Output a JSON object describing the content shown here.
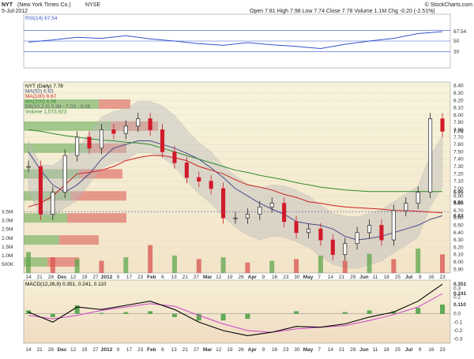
{
  "header": {
    "symbol": "NYT",
    "company": "(New York Times Co.)",
    "exchange": "NYSE",
    "date": "5-Jul-2012",
    "ohlc_text": "Open 7.81  High 7.98  Low 7.74  Close 7.78  Volume 1.1M  Chg -0.20 (-2.51%)",
    "source": "© StockCharts.com"
  },
  "colors": {
    "up": "#222222",
    "down": "#d11a2a",
    "ma50": "#4b4b8c",
    "ma100": "#cc2222",
    "ma200": "#2f8a2f",
    "bband_fill": "#bdbdbd",
    "vbp_green": "#5fa64c",
    "vbp_red": "#d9534f",
    "rsi_line": "#3355cc",
    "macd_line": "#000000",
    "signal_line": "#cc44cc",
    "hist": "#3a9a3a",
    "panel_bg_top": "#f6f3d8",
    "panel_bg_bottom": "#f2dfc4"
  },
  "chart_data": [
    {
      "type": "line",
      "title": "RSI(14) 67.54",
      "ylim": [
        0,
        100
      ],
      "reference_lines": [
        30,
        50,
        70
      ],
      "right_labels": [
        "67.54",
        "50",
        "30"
      ],
      "x": [
        "2011-11-14",
        "2011-11-28",
        "2011-12-12",
        "2011-12-27",
        "2012-01-09",
        "2012-01-23",
        "2012-02-06",
        "2012-02-21",
        "2012-03-05",
        "2012-03-19",
        "2012-04-02",
        "2012-04-16",
        "2012-04-30",
        "2012-05-14",
        "2012-05-29",
        "2012-06-11",
        "2012-06-25",
        "2012-07-05"
      ],
      "series": [
        {
          "name": "RSI(14)",
          "values": [
            48,
            52,
            57,
            55,
            60,
            54,
            50,
            45,
            42,
            47,
            43,
            40,
            36,
            44,
            50,
            55,
            64,
            67.54
          ]
        }
      ]
    },
    {
      "type": "line",
      "subtype": "candlestick",
      "title": "NYT (Daily) 7.78",
      "ylim": [
        5.85,
        8.45
      ],
      "ytick_labels": [
        "8.40",
        "8.30",
        "8.20",
        "8.10",
        "8.00",
        "7.90",
        "7.80",
        "7.70",
        "7.60",
        "7.50",
        "7.40",
        "7.30",
        "7.20",
        "7.10",
        "7.00",
        "6.90",
        "6.80",
        "6.70",
        "6.60",
        "6.50",
        "6.40",
        "6.30",
        "6.20",
        "6.10",
        "6.00",
        "5.90"
      ],
      "right_value_labels": [
        "7.78",
        "6.95",
        "6.81",
        "6.63"
      ],
      "legend": [
        "NYT (Daily) 7.78",
        "MA(50) 6.63",
        "MA(100) 6.67",
        "MA(200) 6.96",
        "BB(20,2.0) 5.99 - 7.03 - 8.06",
        "Volume 1,073,923"
      ],
      "volume_axis_labels": [
        "3.5M",
        "3.0M",
        "2.5M",
        "2.0M",
        "1.5M",
        "1.0M",
        "500K"
      ],
      "x_tick_labels": [
        "14",
        "21",
        "28",
        "Dec",
        "12",
        "19",
        "27",
        "2012",
        "9",
        "17",
        "23",
        "Feb",
        "6",
        "13",
        "21",
        "27",
        "Mar",
        "12",
        "19",
        "26",
        "Apr",
        "9",
        "16",
        "23",
        "30",
        "May",
        "7",
        "14",
        "21",
        "29",
        "Jun",
        "11",
        "18",
        "25",
        "Jul",
        "9",
        "16",
        "23"
      ],
      "x": [
        "2011-11-14",
        "2011-11-21",
        "2011-11-28",
        "2011-12-05",
        "2011-12-12",
        "2011-12-19",
        "2011-12-27",
        "2012-01-03",
        "2012-01-09",
        "2012-01-17",
        "2012-01-23",
        "2012-01-30",
        "2012-02-06",
        "2012-02-13",
        "2012-02-21",
        "2012-02-27",
        "2012-03-05",
        "2012-03-12",
        "2012-03-19",
        "2012-03-26",
        "2012-04-02",
        "2012-04-09",
        "2012-04-16",
        "2012-04-23",
        "2012-04-30",
        "2012-05-07",
        "2012-05-14",
        "2012-05-21",
        "2012-05-29",
        "2012-06-04",
        "2012-06-11",
        "2012-06-18",
        "2012-06-25",
        "2012-07-02",
        "2012-07-05"
      ],
      "close": [
        7.3,
        6.65,
        6.95,
        7.45,
        7.7,
        7.55,
        7.8,
        7.75,
        7.85,
        7.95,
        7.8,
        7.5,
        7.35,
        7.15,
        7.1,
        7.0,
        6.6,
        6.6,
        6.65,
        6.75,
        6.8,
        6.55,
        6.4,
        6.45,
        6.3,
        6.1,
        6.25,
        6.4,
        6.5,
        6.3,
        6.7,
        6.8,
        6.95,
        7.95,
        7.78
      ],
      "series": [
        {
          "name": "MA(50)",
          "values": [
            7.5,
            7.25,
            7.05,
            6.95,
            7.05,
            7.2,
            7.4,
            7.55,
            7.6,
            7.65,
            7.65,
            7.6,
            7.55,
            7.48,
            7.4,
            7.28,
            7.15,
            7.0,
            6.9,
            6.8,
            6.72,
            6.65,
            6.55,
            6.52,
            6.5,
            6.45,
            6.35,
            6.3,
            6.32,
            6.35,
            6.4,
            6.45,
            6.5,
            6.58,
            6.63
          ]
        },
        {
          "name": "MA(100)",
          "values": [
            6.75,
            6.8,
            6.9,
            7.05,
            7.2,
            7.22,
            7.25,
            7.3,
            7.38,
            7.42,
            7.45,
            7.45,
            7.42,
            7.38,
            7.3,
            7.25,
            7.2,
            7.12,
            7.05,
            7.02,
            6.98,
            6.92,
            6.88,
            6.82,
            6.8,
            6.77,
            6.75,
            6.74,
            6.73,
            6.72,
            6.7,
            6.7,
            6.69,
            6.68,
            6.67
          ]
        },
        {
          "name": "MA(200)",
          "values": [
            7.8,
            7.78,
            7.75,
            7.72,
            7.7,
            7.68,
            7.66,
            7.65,
            7.63,
            7.62,
            7.6,
            7.55,
            7.5,
            7.45,
            7.4,
            7.35,
            7.3,
            7.25,
            7.22,
            7.18,
            7.15,
            7.12,
            7.08,
            7.05,
            7.02,
            7.0,
            6.98,
            6.97,
            6.96,
            6.96,
            6.96,
            6.96,
            6.96,
            6.96,
            6.96
          ]
        }
      ]
    },
    {
      "type": "bar",
      "title": "Volume",
      "categories": [
        "2011-11-14",
        "2011-11-28",
        "2011-12-12",
        "2011-12-27",
        "2012-01-09",
        "2012-01-23",
        "2012-02-06",
        "2012-02-21",
        "2012-03-05",
        "2012-03-19",
        "2012-04-02",
        "2012-04-16",
        "2012-04-30",
        "2012-05-14",
        "2012-05-29",
        "2012-06-11",
        "2012-06-25",
        "2012-07-05"
      ],
      "values": [
        1.2,
        0.9,
        0.8,
        0.7,
        0.9,
        1.6,
        1.0,
        0.8,
        0.9,
        0.6,
        0.7,
        0.8,
        1.0,
        0.7,
        1.1,
        0.8,
        1.4,
        1.07
      ],
      "ylabel": "",
      "ylim": [
        0,
        3.8
      ]
    },
    {
      "type": "line",
      "title": "MACD(12,26,9) 0.351, 0.241, 0.110",
      "legend": [
        "MACD(12,26,9) 0.351",
        "0.241",
        "0.110"
      ],
      "right_labels": [
        "0.351",
        "0.3",
        "0.241",
        "0.2",
        "0.110",
        "0.0",
        "-0.1",
        "-0.2",
        "-0.3"
      ],
      "x_tick_labels": [
        "14",
        "21",
        "28",
        "Dec",
        "12",
        "19",
        "27",
        "2012",
        "9",
        "17",
        "23",
        "Feb",
        "6",
        "13",
        "21",
        "27",
        "Mar",
        "12",
        "19",
        "26",
        "Apr",
        "9",
        "16",
        "23",
        "30",
        "May",
        "7",
        "14",
        "21",
        "29",
        "Jun",
        "11",
        "18",
        "25",
        "Jul",
        "9",
        "16",
        "23"
      ],
      "ylim": [
        -0.35,
        0.4
      ],
      "x": [
        "2011-11-14",
        "2011-11-28",
        "2011-12-12",
        "2011-12-27",
        "2012-01-09",
        "2012-01-23",
        "2012-02-06",
        "2012-02-21",
        "2012-03-05",
        "2012-03-19",
        "2012-04-02",
        "2012-04-16",
        "2012-04-30",
        "2012-05-14",
        "2012-05-29",
        "2012-06-11",
        "2012-06-25",
        "2012-07-05"
      ],
      "series": [
        {
          "name": "MACD(12,26,9)",
          "values": [
            0.02,
            -0.1,
            0.08,
            0.05,
            0.1,
            0.15,
            0.05,
            -0.1,
            -0.2,
            -0.26,
            -0.22,
            -0.15,
            -0.16,
            -0.12,
            -0.04,
            0.02,
            0.15,
            0.351
          ]
        },
        {
          "name": "signal",
          "values": [
            -0.02,
            -0.06,
            -0.02,
            0.04,
            0.08,
            0.12,
            0.09,
            -0.02,
            -0.12,
            -0.2,
            -0.22,
            -0.18,
            -0.16,
            -0.14,
            -0.08,
            -0.01,
            0.08,
            0.241
          ]
        },
        {
          "name": "histogram",
          "values": [
            0.04,
            -0.04,
            0.1,
            0.01,
            0.02,
            0.03,
            -0.04,
            -0.08,
            -0.08,
            -0.06,
            0.0,
            0.03,
            0.0,
            0.02,
            0.04,
            0.03,
            0.07,
            0.11
          ]
        }
      ]
    }
  ]
}
